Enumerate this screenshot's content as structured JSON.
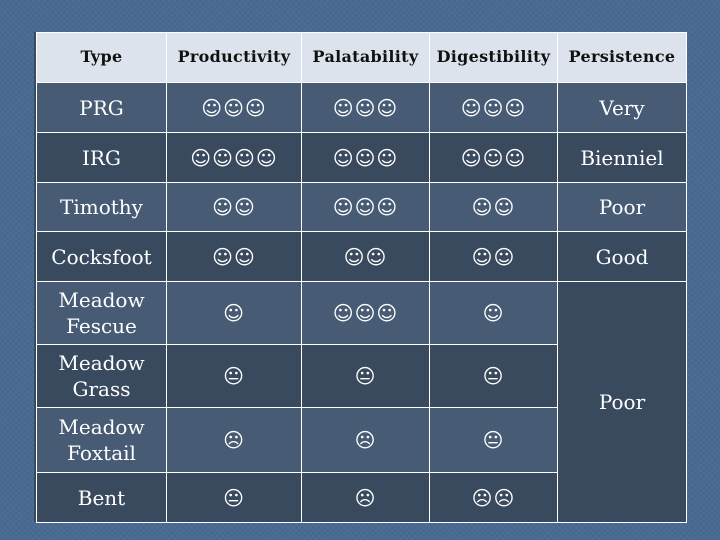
{
  "table": {
    "headers": [
      "Type",
      "Productivity",
      "Palatability",
      "Digestibility",
      "Persistence"
    ],
    "rows": [
      {
        "type": "PRG",
        "productivity": "☺☺☺",
        "palatability": "☺☺☺",
        "digestibility": "☺☺☺",
        "persistence": "Very"
      },
      {
        "type": "IRG",
        "productivity": "☺☺☺☺",
        "palatability": "☺☺☺",
        "digestibility": "☺☺☺",
        "persistence": "Bienniel"
      },
      {
        "type": "Timothy",
        "productivity": "☺☺",
        "palatability": "☺☺☺",
        "digestibility": "☺☺",
        "persistence": "Poor"
      },
      {
        "type": "Cocksfoot",
        "productivity": "☺☺",
        "palatability": "☺☺",
        "digestibility": "☺☺",
        "persistence": "Good"
      },
      {
        "type": "Meadow Fescue",
        "productivity": "☺",
        "palatability": "☺☺☺",
        "digestibility": "☺"
      },
      {
        "type": "Meadow Grass",
        "productivity": "😐",
        "palatability": "😐",
        "digestibility": "😐"
      },
      {
        "type": "Meadow Foxtail",
        "productivity": "☹",
        "palatability": "☹",
        "digestibility": "😐"
      },
      {
        "type": "Bent",
        "productivity": "😐",
        "palatability": "☹",
        "digestibility": "☹☹"
      }
    ],
    "merged_persistence": "Poor"
  }
}
